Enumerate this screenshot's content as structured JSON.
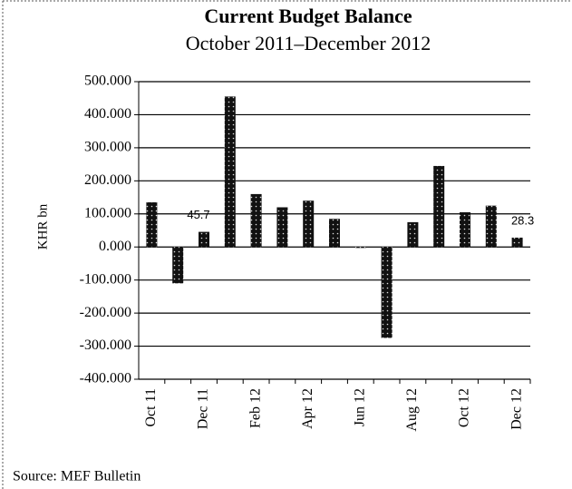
{
  "chart_data": {
    "type": "bar",
    "title": "Current Budget Balance",
    "subtitle": "October 2011–December 2012",
    "ylabel": "KHR bn",
    "source": "Source: MEF Bulletin",
    "categories": [
      "Oct 11",
      null,
      "Dec 11",
      null,
      "Feb 12",
      null,
      "Apr 12",
      null,
      "Jun 12",
      null,
      "Aug 12",
      null,
      "Oct 12",
      null,
      "Dec 12"
    ],
    "values": [
      135,
      -110,
      45.7,
      455,
      160,
      120,
      140,
      85,
      -3,
      -275,
      75,
      245,
      105,
      125,
      28.3
    ],
    "value_labels": [
      null,
      null,
      "45.7",
      null,
      null,
      null,
      null,
      null,
      null,
      null,
      null,
      null,
      null,
      null,
      "28.3"
    ],
    "color": "#111111",
    "ylim": [
      -400,
      500
    ],
    "yticks": [
      {
        "value": -400,
        "label": "-400.000"
      },
      {
        "value": -300,
        "label": "-300.000"
      },
      {
        "value": -200,
        "label": "-200.000"
      },
      {
        "value": -100,
        "label": "-100.000"
      },
      {
        "value": 0,
        "label": "0.000"
      },
      {
        "value": 100,
        "label": "100.000"
      },
      {
        "value": 200,
        "label": "200.000"
      },
      {
        "value": 300,
        "label": "300.000"
      },
      {
        "value": 400,
        "label": "400.000"
      },
      {
        "value": 500,
        "label": "500.000"
      }
    ],
    "grid": true
  }
}
